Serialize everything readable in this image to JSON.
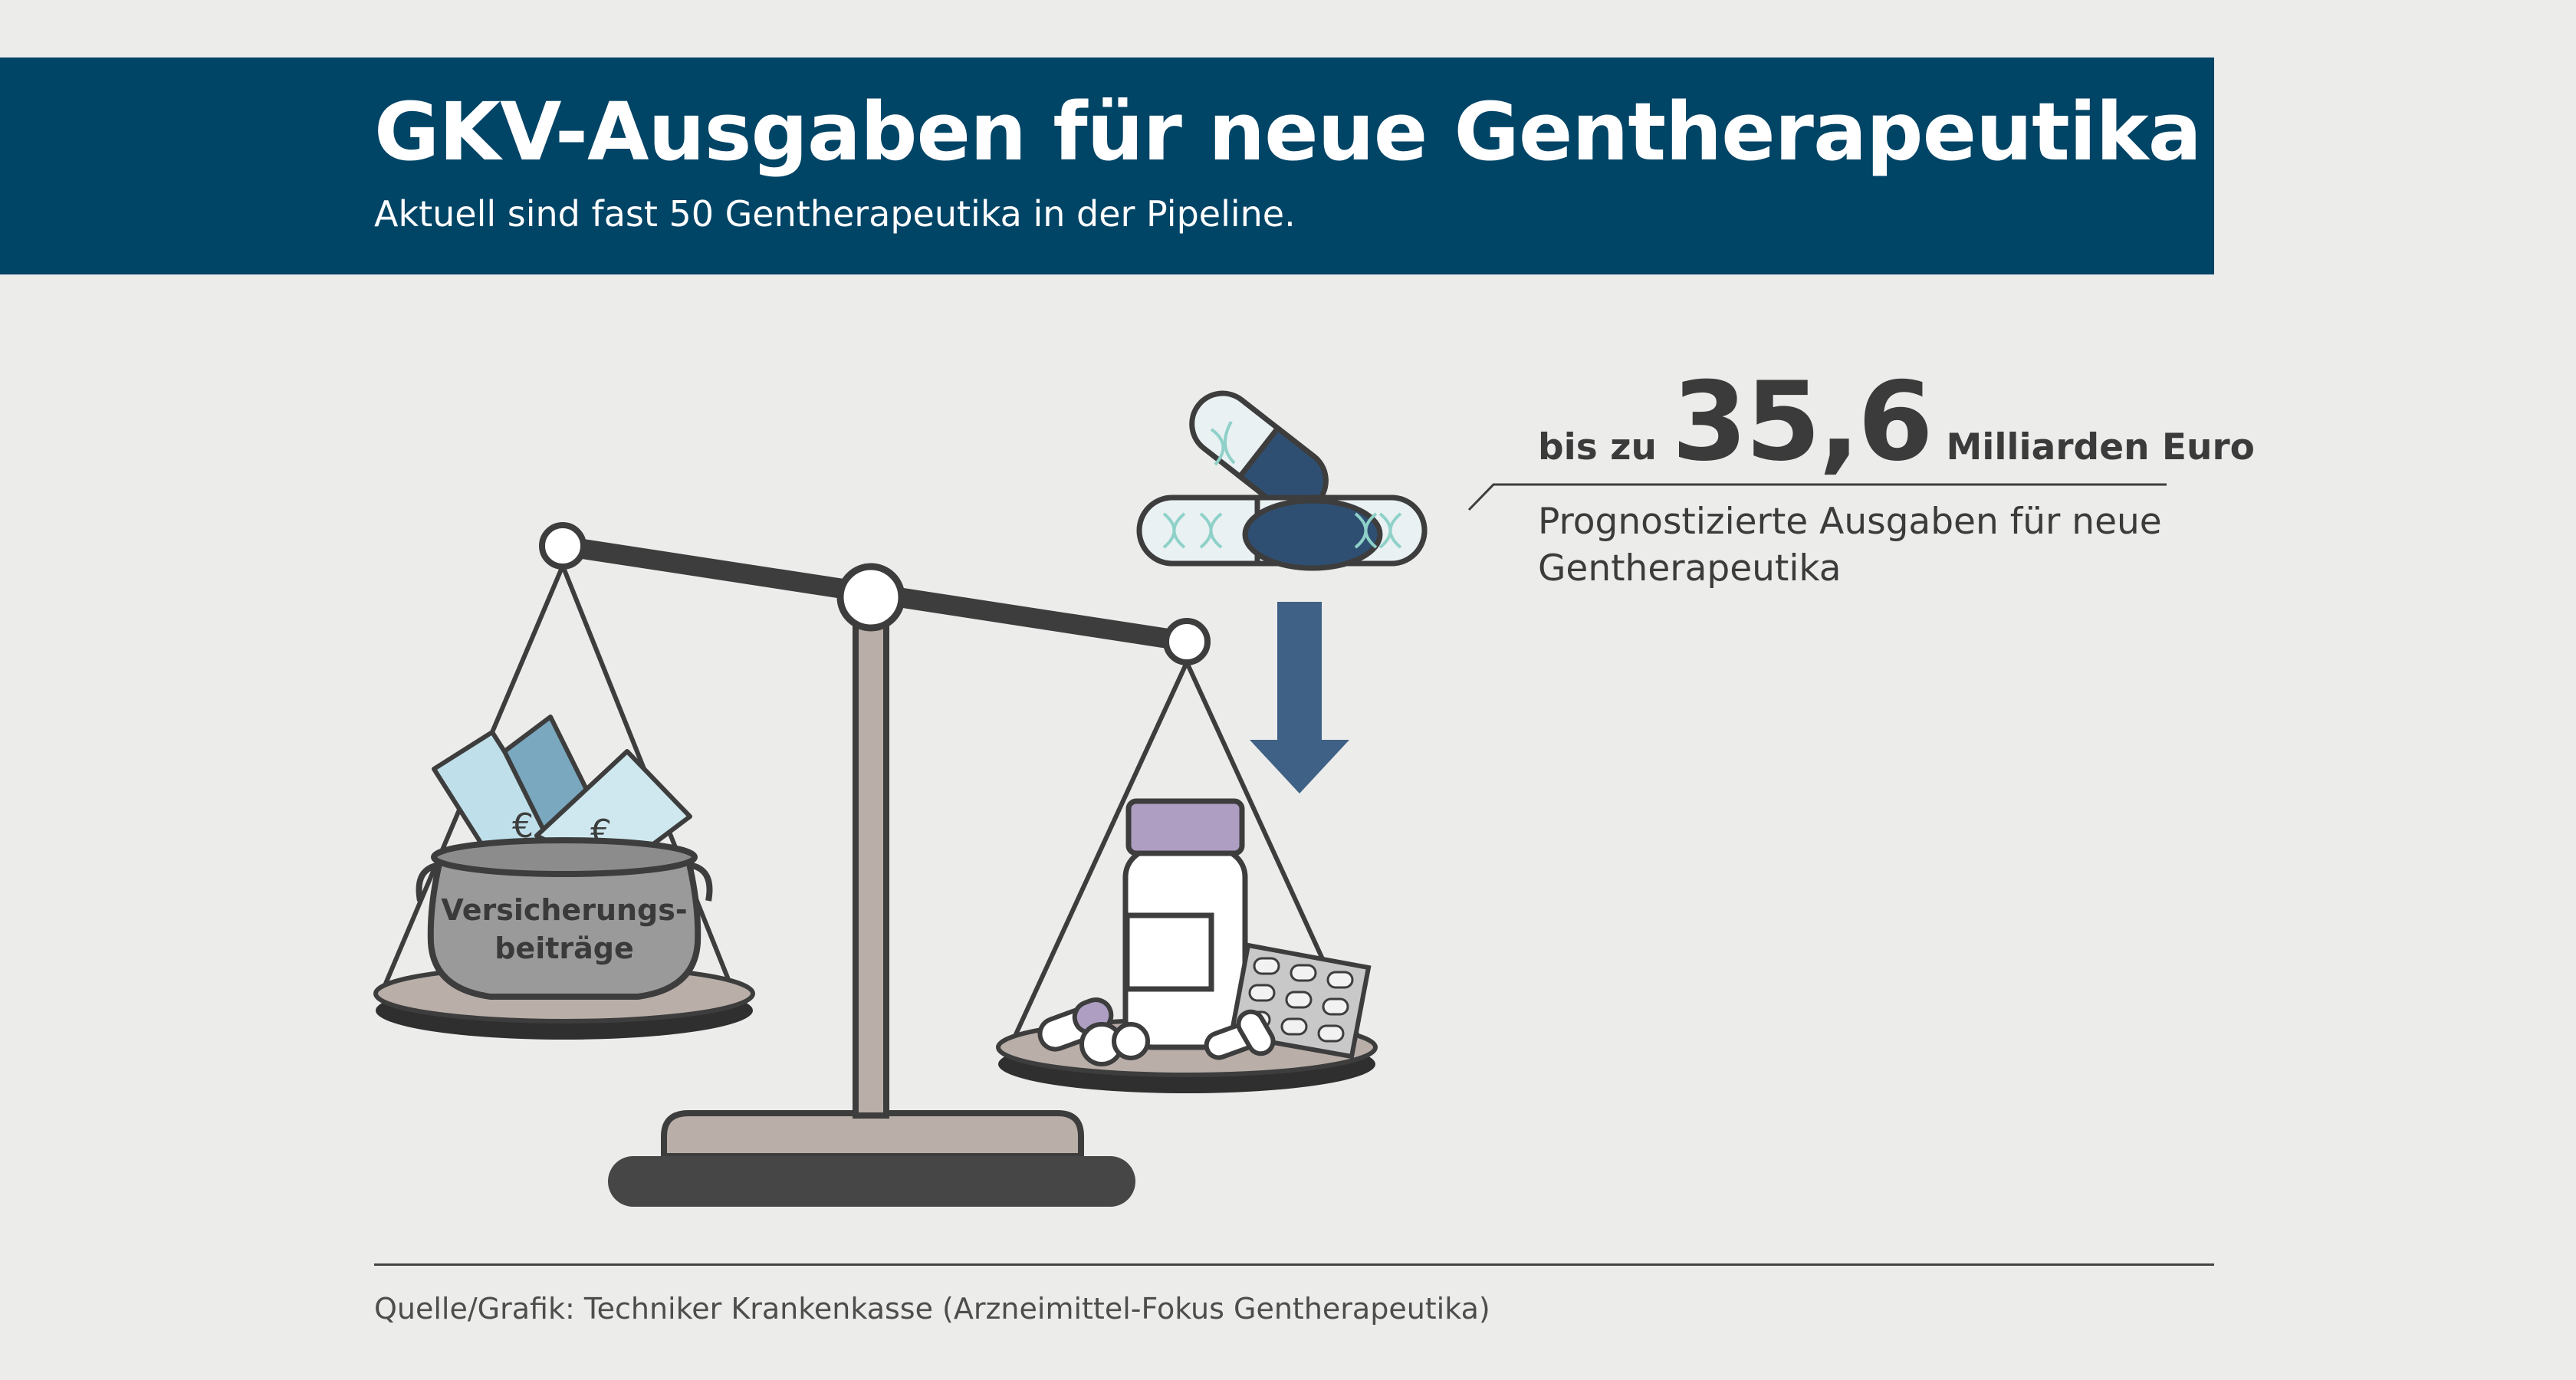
{
  "header": {
    "title": "GKV-Ausgaben für neue Gentherapeutika",
    "subtitle": "Aktuell sind fast 50 Gentherapeutika in der Pipeline."
  },
  "callout": {
    "prefix": "bis zu",
    "amount": "35,6",
    "unit": "Milliarden Euro",
    "description": "Prognostizierte Ausgaben für neue Gentherapeutika"
  },
  "scale": {
    "pot_label_line1": "Versicherungs-",
    "pot_label_line2": "beiträge"
  },
  "footer": {
    "source": "Quelle/Grafik: Techniker Krankenkasse (Arzneimittel-Fokus Gentherapeutika)"
  },
  "colors": {
    "header_bg": "#004466",
    "background": "#ececea",
    "arrow": "#3f6186",
    "ink": "#3b3b3b"
  },
  "icons": [
    "scale-icon",
    "money-pot-icon",
    "dna-capsule-icon",
    "down-arrow-icon",
    "pill-bottle-icon",
    "blister-pack-icon"
  ]
}
